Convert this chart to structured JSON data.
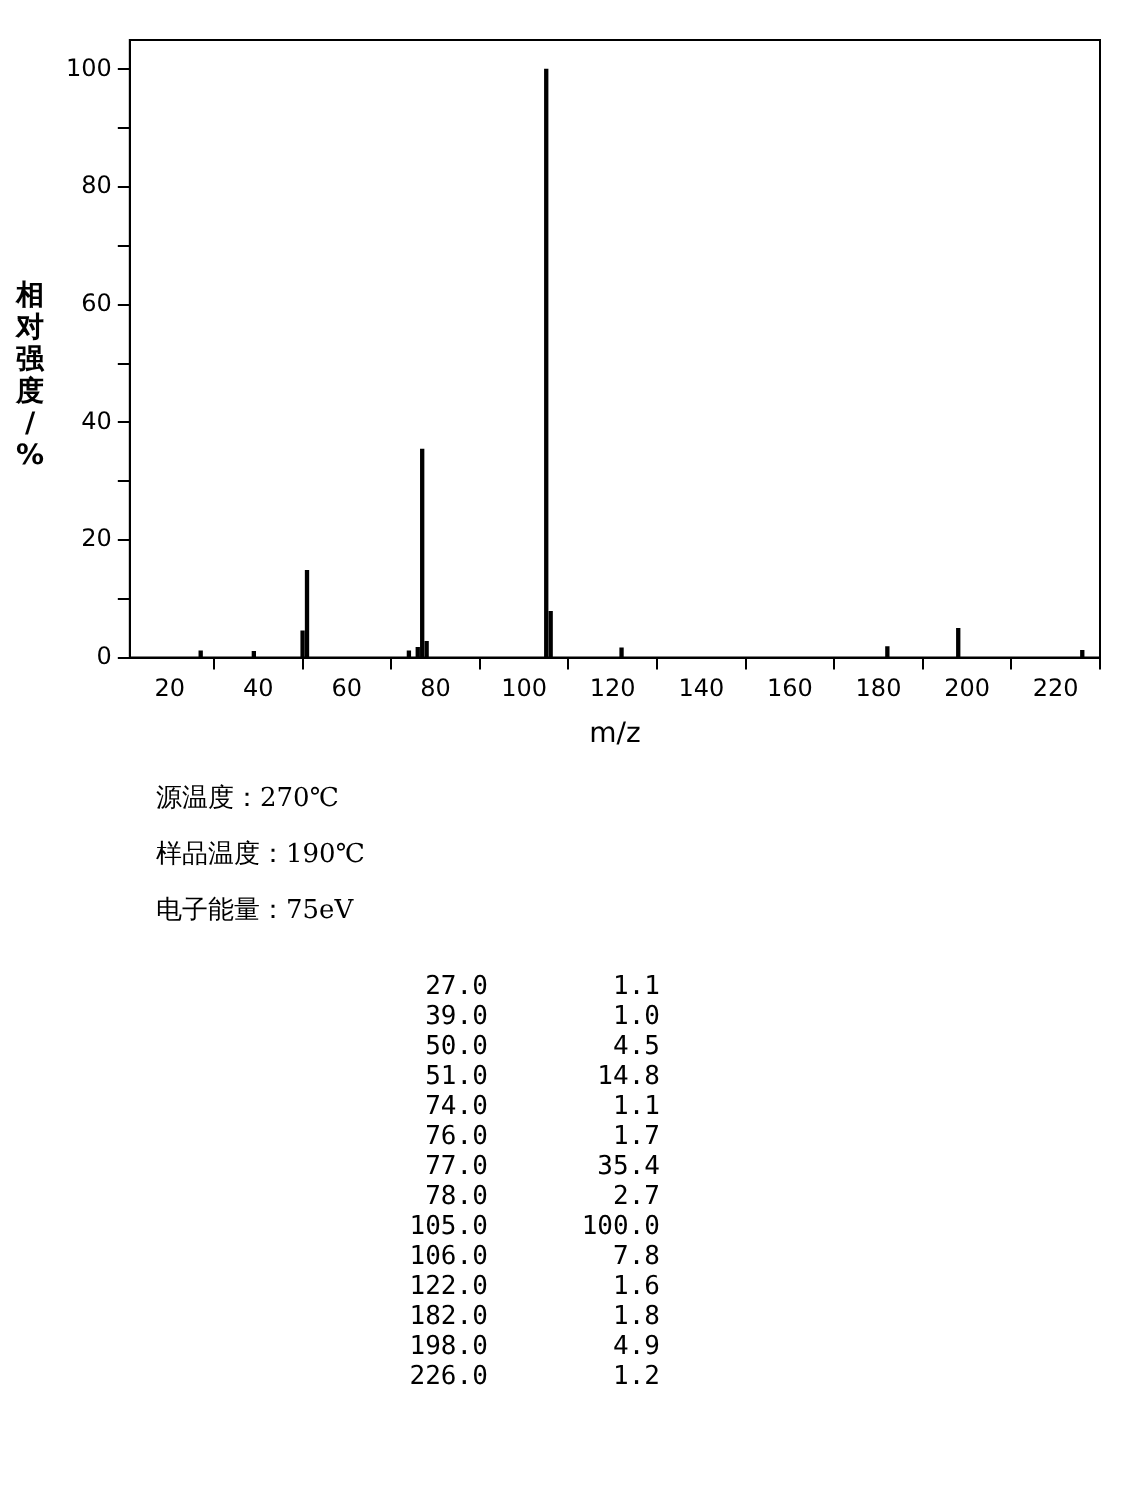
{
  "chart_data": {
    "type": "bar",
    "xlabel": "m/z",
    "ylabel": "相对强度/%",
    "x": [
      27,
      39,
      50,
      51,
      74,
      76,
      77,
      78,
      105,
      106,
      122,
      182,
      198,
      226
    ],
    "values": [
      1.1,
      1.0,
      4.5,
      14.8,
      1.1,
      1.7,
      35.4,
      2.7,
      100.0,
      7.8,
      1.6,
      1.8,
      4.9,
      1.2
    ],
    "color": "#000000",
    "xlim": [
      11,
      230
    ],
    "xticks": [
      20,
      40,
      60,
      80,
      100,
      120,
      140,
      160,
      180,
      200,
      220
    ],
    "ylim": [
      0,
      105
    ],
    "yticks": [
      0,
      {
        "value": 10,
        "label": null
      },
      20,
      {
        "value": 30,
        "label": null
      },
      40,
      {
        "value": 50,
        "label": null
      },
      60,
      {
        "value": 70,
        "label": null
      },
      80,
      {
        "value": 90,
        "label": null
      },
      100
    ],
    "grid": false,
    "legend": false,
    "annotations": [
      "源温度：270℃",
      "样品温度：190℃",
      "电子能量：75eV",
      "27.0        1.1",
      "39.0        1.0",
      "50.0        4.5",
      "51.0       14.8",
      "74.0        1.1",
      "76.0        1.7",
      "77.0       35.4",
      "78.0        2.7",
      "105.0      100.0",
      "106.0        7.8",
      "122.0        1.6",
      "182.0        1.8",
      "198.0        4.9",
      "226.0        1.2"
    ]
  }
}
